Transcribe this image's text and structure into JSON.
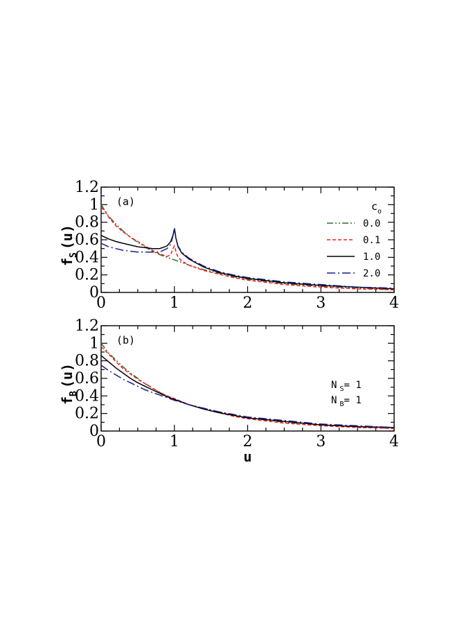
{
  "chart_data": [
    {
      "type": "line",
      "panel_label": "(a)",
      "ylabel_main": "f",
      "ylabel_sub": "S",
      "ylabel_tail": "(u)",
      "xlabel": "",
      "xlim": [
        0,
        4
      ],
      "ylim": [
        0,
        1.2
      ],
      "xticks": [
        0,
        1,
        2,
        3,
        4
      ],
      "xtick_labels": [
        "0",
        "1",
        "2",
        "3",
        "4"
      ],
      "yticks": [
        0,
        0.2,
        0.4,
        0.6,
        0.8,
        1.0,
        1.2
      ],
      "ytick_labels": [
        "0",
        "0.2",
        "0.4",
        "0.6",
        "0.8",
        "1",
        "1.2"
      ],
      "legend": {
        "title_main": "c",
        "title_sub": "o",
        "position": "top-right",
        "entries": [
          "0.0",
          "0.1",
          "1.0",
          "2.0"
        ]
      },
      "series": [
        {
          "name": "0.0",
          "color": "#2d6b2d",
          "dash": "dash-dot-dot",
          "x": [
            0,
            0.1,
            0.2,
            0.3,
            0.4,
            0.5,
            0.6,
            0.7,
            0.8,
            0.9,
            1.0,
            1.2,
            1.4,
            1.6,
            1.8,
            2.0,
            2.5,
            3.0,
            3.5,
            4.0
          ],
          "y": [
            1.0,
            0.87,
            0.78,
            0.7,
            0.63,
            0.57,
            0.52,
            0.47,
            0.43,
            0.4,
            0.37,
            0.31,
            0.26,
            0.22,
            0.18,
            0.15,
            0.1,
            0.07,
            0.05,
            0.03
          ]
        },
        {
          "name": "0.1",
          "color": "#ff1a1a",
          "dash": "dashed",
          "x": [
            0,
            0.05,
            0.1,
            0.2,
            0.3,
            0.4,
            0.5,
            0.6,
            0.7,
            0.8,
            0.9,
            0.95,
            0.98,
            1.0,
            1.02,
            1.05,
            1.1,
            1.2,
            1.4,
            1.6,
            1.8,
            2.0,
            2.5,
            3.0,
            3.5,
            4.0
          ],
          "y": [
            0.97,
            0.93,
            0.86,
            0.76,
            0.69,
            0.63,
            0.58,
            0.53,
            0.48,
            0.44,
            0.41,
            0.43,
            0.5,
            0.53,
            0.47,
            0.4,
            0.36,
            0.31,
            0.25,
            0.21,
            0.17,
            0.14,
            0.09,
            0.06,
            0.04,
            0.03
          ]
        },
        {
          "name": "1.0",
          "color": "#000000",
          "dash": "solid",
          "x": [
            0,
            0.1,
            0.2,
            0.3,
            0.4,
            0.5,
            0.6,
            0.7,
            0.8,
            0.9,
            0.95,
            0.98,
            1.0,
            1.02,
            1.05,
            1.1,
            1.2,
            1.4,
            1.6,
            1.8,
            2.0,
            2.5,
            3.0,
            3.5,
            4.0
          ],
          "y": [
            0.65,
            0.61,
            0.58,
            0.56,
            0.54,
            0.52,
            0.51,
            0.5,
            0.5,
            0.53,
            0.58,
            0.65,
            0.72,
            0.62,
            0.52,
            0.45,
            0.38,
            0.29,
            0.23,
            0.19,
            0.16,
            0.11,
            0.08,
            0.06,
            0.04
          ]
        },
        {
          "name": "2.0",
          "color": "#1a1a8c",
          "dash": "long-dash-dot",
          "x": [
            0,
            0.1,
            0.2,
            0.3,
            0.4,
            0.5,
            0.6,
            0.7,
            0.8,
            0.9,
            0.95,
            0.98,
            1.0,
            1.02,
            1.05,
            1.1,
            1.2,
            1.4,
            1.6,
            1.8,
            2.0,
            2.5,
            3.0,
            3.5,
            4.0
          ],
          "y": [
            0.56,
            0.52,
            0.5,
            0.48,
            0.47,
            0.46,
            0.46,
            0.46,
            0.46,
            0.5,
            0.55,
            0.64,
            0.74,
            0.63,
            0.53,
            0.46,
            0.39,
            0.3,
            0.24,
            0.2,
            0.17,
            0.12,
            0.09,
            0.06,
            0.05
          ]
        }
      ]
    },
    {
      "type": "line",
      "panel_label": "(b)",
      "ylabel_main": "f",
      "ylabel_sub": "B",
      "ylabel_tail": "(u)",
      "xlabel": "u",
      "xlim": [
        0,
        4
      ],
      "ylim": [
        0,
        1.2
      ],
      "xticks": [
        0,
        1,
        2,
        3,
        4
      ],
      "xtick_labels": [
        "0",
        "1",
        "2",
        "3",
        "4"
      ],
      "yticks": [
        0,
        0.2,
        0.4,
        0.6,
        0.8,
        1.0,
        1.2
      ],
      "ytick_labels": [
        "0",
        "0.2",
        "0.4",
        "0.6",
        "0.8",
        "1",
        "1.2"
      ],
      "notes": [
        {
          "main": "N",
          "sub": "S",
          "tail": "= 1"
        },
        {
          "main": "N",
          "sub": "B",
          "tail": "= 1"
        }
      ],
      "series": [
        {
          "name": "0.0",
          "color": "#2d6b2d",
          "dash": "dash-dot-dot",
          "x": [
            0,
            0.1,
            0.2,
            0.3,
            0.4,
            0.5,
            0.6,
            0.7,
            0.8,
            0.9,
            1.0,
            1.2,
            1.4,
            1.6,
            1.8,
            2.0,
            2.5,
            3.0,
            3.5,
            4.0
          ],
          "y": [
            1.0,
            0.89,
            0.81,
            0.73,
            0.66,
            0.6,
            0.54,
            0.49,
            0.44,
            0.4,
            0.36,
            0.3,
            0.26,
            0.22,
            0.18,
            0.15,
            0.1,
            0.07,
            0.05,
            0.03
          ]
        },
        {
          "name": "0.1",
          "color": "#ff1a1a",
          "dash": "dashed",
          "x": [
            0,
            0.05,
            0.1,
            0.2,
            0.3,
            0.4,
            0.5,
            0.6,
            0.7,
            0.8,
            0.9,
            1.0,
            1.2,
            1.4,
            1.6,
            1.8,
            2.0,
            2.5,
            3.0,
            3.5,
            4.0
          ],
          "y": [
            0.96,
            0.92,
            0.88,
            0.79,
            0.71,
            0.65,
            0.59,
            0.54,
            0.49,
            0.44,
            0.4,
            0.37,
            0.3,
            0.25,
            0.21,
            0.17,
            0.14,
            0.09,
            0.06,
            0.04,
            0.03
          ]
        },
        {
          "name": "1.0",
          "color": "#000000",
          "dash": "solid",
          "x": [
            0,
            0.1,
            0.2,
            0.3,
            0.4,
            0.5,
            0.6,
            0.7,
            0.8,
            0.9,
            1.0,
            1.2,
            1.4,
            1.6,
            1.8,
            2.0,
            2.5,
            3.0,
            3.5,
            4.0
          ],
          "y": [
            0.86,
            0.79,
            0.72,
            0.66,
            0.6,
            0.55,
            0.51,
            0.47,
            0.43,
            0.39,
            0.36,
            0.3,
            0.25,
            0.21,
            0.18,
            0.15,
            0.11,
            0.07,
            0.05,
            0.04
          ]
        },
        {
          "name": "2.0",
          "color": "#1a1a8c",
          "dash": "long-dash-dot",
          "x": [
            0,
            0.1,
            0.2,
            0.3,
            0.4,
            0.5,
            0.6,
            0.7,
            0.8,
            0.9,
            1.0,
            1.2,
            1.4,
            1.6,
            1.8,
            2.0,
            2.5,
            3.0,
            3.5,
            4.0
          ],
          "y": [
            0.75,
            0.69,
            0.64,
            0.59,
            0.55,
            0.51,
            0.47,
            0.44,
            0.41,
            0.38,
            0.35,
            0.3,
            0.26,
            0.22,
            0.19,
            0.16,
            0.12,
            0.08,
            0.06,
            0.04
          ]
        }
      ]
    }
  ]
}
